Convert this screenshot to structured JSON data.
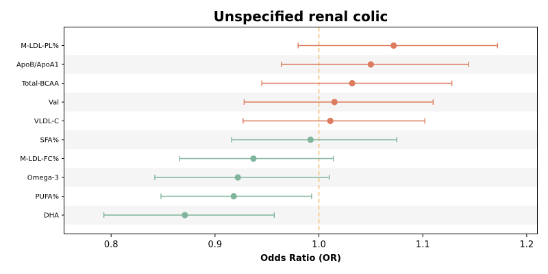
{
  "chart_data": {
    "type": "forest",
    "title": "Unspecified renal colic",
    "xlabel": "Odds Ratio (OR)",
    "ylabel": "",
    "xlim": [
      0.755,
      1.21
    ],
    "xticks": [
      0.8,
      0.9,
      1.0,
      1.1,
      1.2
    ],
    "xtick_labels": [
      "0.8",
      "0.9",
      "1.0",
      "1.1",
      "1.2"
    ],
    "reference_line": 1.0,
    "reference_color": "#f5c27a",
    "risk_color": "#dc7b5d",
    "protective_color": "#80b59b",
    "band_color": "#f5f5f5",
    "grid": false,
    "rows": [
      {
        "label": "M-LDL-PL%",
        "or": 1.072,
        "lower": 0.98,
        "upper": 1.172
      },
      {
        "label": "ApoB/ApoA1",
        "or": 1.05,
        "lower": 0.964,
        "upper": 1.144
      },
      {
        "label": "Total-BCAA",
        "or": 1.032,
        "lower": 0.945,
        "upper": 1.128
      },
      {
        "label": "Val",
        "or": 1.015,
        "lower": 0.928,
        "upper": 1.11
      },
      {
        "label": "VLDL-C",
        "or": 1.011,
        "lower": 0.927,
        "upper": 1.102
      },
      {
        "label": "SFA%",
        "or": 0.992,
        "lower": 0.916,
        "upper": 1.075
      },
      {
        "label": "M-LDL-FC%",
        "or": 0.937,
        "lower": 0.866,
        "upper": 1.014
      },
      {
        "label": "Omega-3",
        "or": 0.922,
        "lower": 0.842,
        "upper": 1.01
      },
      {
        "label": "PUFA%",
        "or": 0.918,
        "lower": 0.848,
        "upper": 0.993
      },
      {
        "label": "DHA",
        "or": 0.871,
        "lower": 0.793,
        "upper": 0.957
      }
    ]
  }
}
